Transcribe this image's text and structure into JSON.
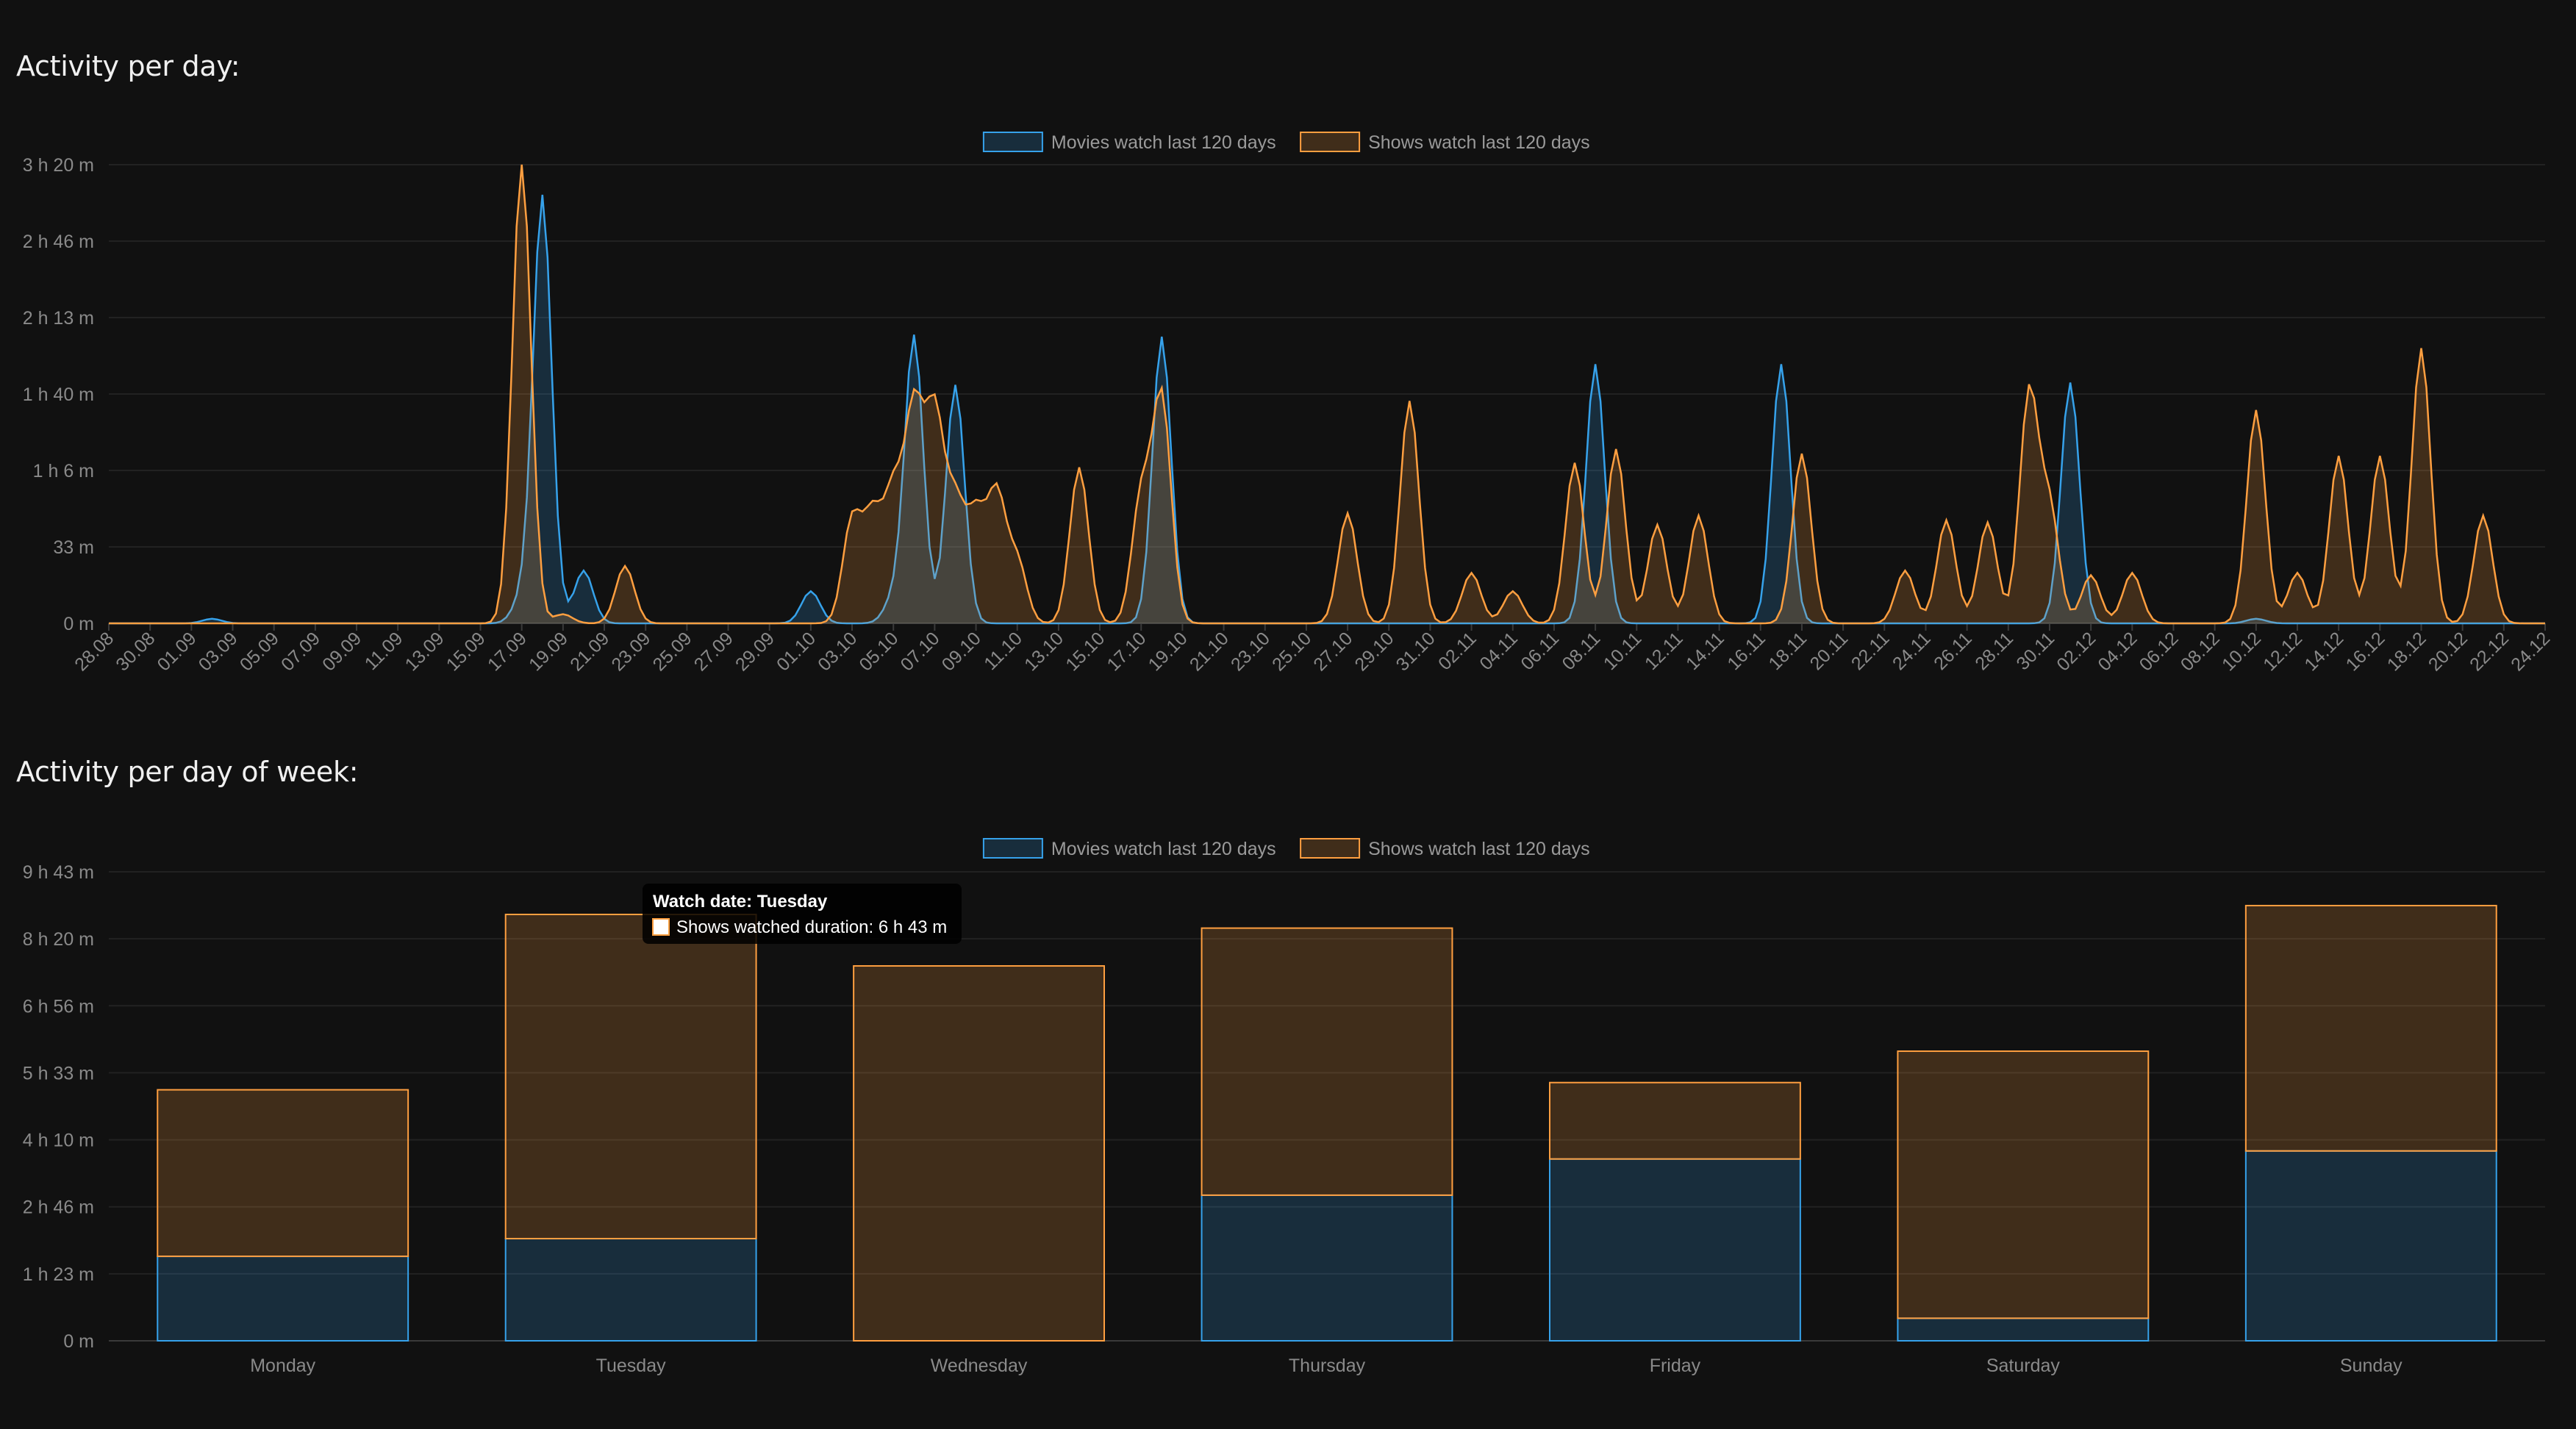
{
  "titles": {
    "daily": "Activity per day:",
    "weekly": "Activity per day of week:"
  },
  "colors": {
    "movies": "#36a2eb",
    "shows": "#ff9f40",
    "background": "#111111",
    "grid": "#222222"
  },
  "chart_data": [
    {
      "type": "area",
      "legend": [
        "Movies watch last 120 days",
        "Shows watch last 120 days"
      ],
      "legend_position": "top-center",
      "y_tick_labels": [
        "0 m",
        "33 m",
        "1 h 6 m",
        "1 h 40 m",
        "2 h 13 m",
        "2 h 46 m",
        "3 h 20 m"
      ],
      "ylim_minutes": [
        0,
        200
      ],
      "x_tick_labels": [
        "28.08",
        "30.08",
        "01.09",
        "03.09",
        "05.09",
        "07.09",
        "09.09",
        "11.09",
        "13.09",
        "15.09",
        "17.09",
        "19.09",
        "21.09",
        "23.09",
        "25.09",
        "27.09",
        "29.09",
        "01.10",
        "03.10",
        "05.10",
        "07.10",
        "09.10",
        "11.10",
        "13.10",
        "15.10",
        "17.10",
        "19.10",
        "21.10",
        "23.10",
        "25.10",
        "27.10",
        "29.10",
        "31.10",
        "02.11",
        "04.11",
        "06.11",
        "08.11",
        "10.11",
        "12.11",
        "14.11",
        "16.11",
        "18.11",
        "20.11",
        "22.11",
        "24.11",
        "26.11",
        "28.11",
        "30.11",
        "02.12",
        "04.12",
        "06.12",
        "08.12",
        "10.12",
        "12.12",
        "14.12",
        "16.12",
        "18.12",
        "20.12",
        "22.12",
        "24.12"
      ],
      "grid": true,
      "series": [
        {
          "name": "Movies watch last 120 days",
          "color": "#36a2eb",
          "points": [
            [
              5,
              2
            ],
            [
              20,
              10
            ],
            [
              21,
              186
            ],
            [
              23,
              23
            ],
            [
              34,
              14
            ],
            [
              38,
              10
            ],
            [
              39,
              125
            ],
            [
              41,
              104
            ],
            [
              51,
              125
            ],
            [
              72,
              113
            ],
            [
              81,
              113
            ],
            [
              95,
              105
            ],
            [
              104,
              2
            ]
          ]
        },
        {
          "name": "Shows watch last 120 days",
          "color": "#ff9f40",
          "points": [
            [
              20,
              10
            ],
            [
              20,
              192
            ],
            [
              22,
              4
            ],
            [
              25,
              25
            ],
            [
              36,
              45
            ],
            [
              37,
              45
            ],
            [
              38,
              55
            ],
            [
              39,
              90
            ],
            [
              40,
              88
            ],
            [
              41,
              50
            ],
            [
              42,
              45
            ],
            [
              43,
              55
            ],
            [
              44,
              27
            ],
            [
              47,
              68
            ],
            [
              50,
              55
            ],
            [
              51,
              98
            ],
            [
              60,
              48
            ],
            [
              63,
              97
            ],
            [
              66,
              22
            ],
            [
              68,
              14
            ],
            [
              71,
              70
            ],
            [
              73,
              76
            ],
            [
              75,
              43
            ],
            [
              77,
              47
            ],
            [
              82,
              74
            ],
            [
              87,
              23
            ],
            [
              89,
              45
            ],
            [
              91,
              44
            ],
            [
              93,
              100
            ],
            [
              94,
              50
            ],
            [
              96,
              21
            ],
            [
              98,
              22
            ],
            [
              104,
              93
            ],
            [
              106,
              22
            ],
            [
              108,
              73
            ],
            [
              110,
              73
            ],
            [
              112,
              120
            ],
            [
              115,
              47
            ]
          ]
        }
      ]
    },
    {
      "type": "bar",
      "stacked": true,
      "legend": [
        "Movies watch last 120 days",
        "Shows watch last 120 days"
      ],
      "legend_position": "top-center",
      "categories": [
        "Monday",
        "Tuesday",
        "Wednesday",
        "Thursday",
        "Friday",
        "Saturday",
        "Sunday"
      ],
      "y_tick_labels": [
        "0 m",
        "1 h 23 m",
        "2 h 46 m",
        "4 h 10 m",
        "5 h 33 m",
        "6 h 56 m",
        "8 h 20 m",
        "9 h 43 m"
      ],
      "ylim_minutes": [
        0,
        583
      ],
      "grid": true,
      "series": [
        {
          "name": "Movies watch last 120 days",
          "color": "#36a2eb",
          "values": [
            105,
            127,
            0,
            181,
            226,
            28,
            236
          ]
        },
        {
          "name": "Shows watch last 120 days",
          "color": "#ff9f40",
          "values": [
            207,
            403,
            466,
            332,
            95,
            332,
            305
          ]
        }
      ],
      "tooltip": {
        "title": "Watch date: Tuesday",
        "body": "Shows watched duration: 6 h 43 m"
      }
    }
  ]
}
